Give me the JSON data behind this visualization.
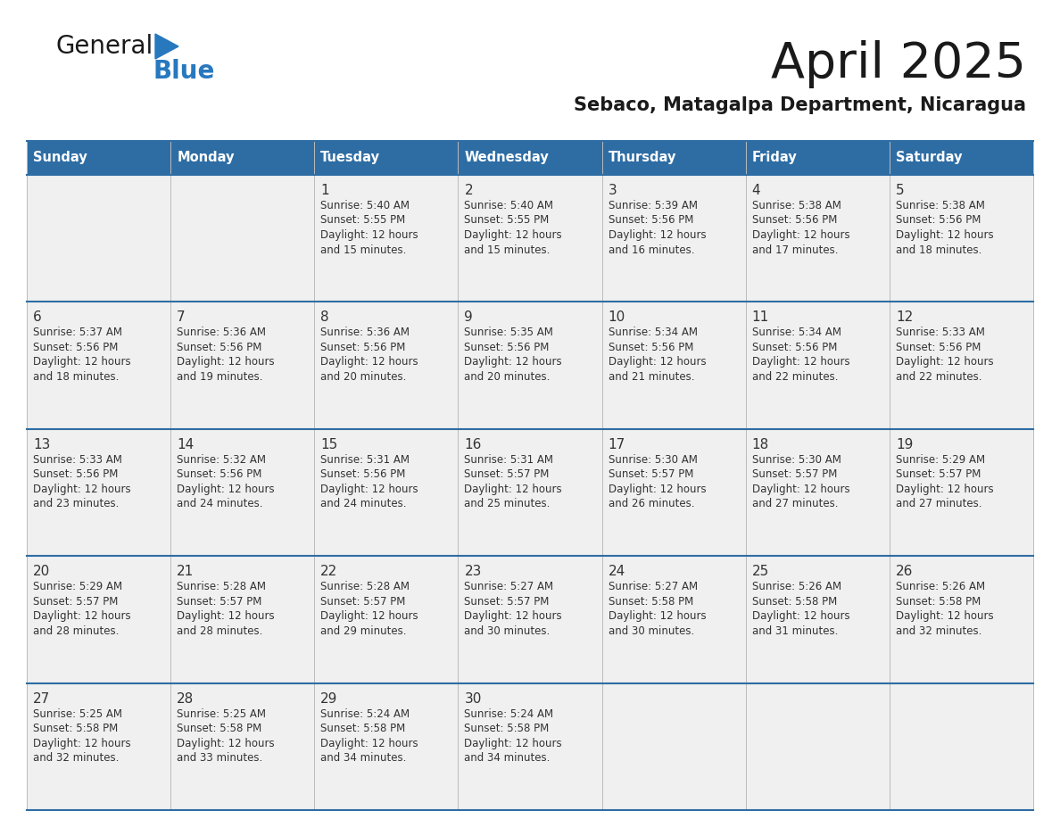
{
  "title": "April 2025",
  "subtitle": "Sebaco, Matagalpa Department, Nicaragua",
  "days_of_week": [
    "Sunday",
    "Monday",
    "Tuesday",
    "Wednesday",
    "Thursday",
    "Friday",
    "Saturday"
  ],
  "header_bg": "#2E6DA4",
  "header_text": "#FFFFFF",
  "cell_bg": "#F0F0F0",
  "cell_text": "#333333",
  "day_num_color": "#333333",
  "border_color": "#2E6DA4",
  "row_line_color": "#2E6DA4",
  "col_line_color": "#BBBBBB",
  "title_color": "#1a1a1a",
  "subtitle_color": "#1a1a1a",
  "logo_general_color": "#1a1a1a",
  "logo_blue_color": "#2878BE",
  "calendar_data": [
    [
      {
        "day": 0,
        "sunrise": "",
        "sunset": "",
        "daylight": ""
      },
      {
        "day": 0,
        "sunrise": "",
        "sunset": "",
        "daylight": ""
      },
      {
        "day": 1,
        "sunrise": "5:40 AM",
        "sunset": "5:55 PM",
        "daylight": "12 hours\nand 15 minutes."
      },
      {
        "day": 2,
        "sunrise": "5:40 AM",
        "sunset": "5:55 PM",
        "daylight": "12 hours\nand 15 minutes."
      },
      {
        "day": 3,
        "sunrise": "5:39 AM",
        "sunset": "5:56 PM",
        "daylight": "12 hours\nand 16 minutes."
      },
      {
        "day": 4,
        "sunrise": "5:38 AM",
        "sunset": "5:56 PM",
        "daylight": "12 hours\nand 17 minutes."
      },
      {
        "day": 5,
        "sunrise": "5:38 AM",
        "sunset": "5:56 PM",
        "daylight": "12 hours\nand 18 minutes."
      }
    ],
    [
      {
        "day": 6,
        "sunrise": "5:37 AM",
        "sunset": "5:56 PM",
        "daylight": "12 hours\nand 18 minutes."
      },
      {
        "day": 7,
        "sunrise": "5:36 AM",
        "sunset": "5:56 PM",
        "daylight": "12 hours\nand 19 minutes."
      },
      {
        "day": 8,
        "sunrise": "5:36 AM",
        "sunset": "5:56 PM",
        "daylight": "12 hours\nand 20 minutes."
      },
      {
        "day": 9,
        "sunrise": "5:35 AM",
        "sunset": "5:56 PM",
        "daylight": "12 hours\nand 20 minutes."
      },
      {
        "day": 10,
        "sunrise": "5:34 AM",
        "sunset": "5:56 PM",
        "daylight": "12 hours\nand 21 minutes."
      },
      {
        "day": 11,
        "sunrise": "5:34 AM",
        "sunset": "5:56 PM",
        "daylight": "12 hours\nand 22 minutes."
      },
      {
        "day": 12,
        "sunrise": "5:33 AM",
        "sunset": "5:56 PM",
        "daylight": "12 hours\nand 22 minutes."
      }
    ],
    [
      {
        "day": 13,
        "sunrise": "5:33 AM",
        "sunset": "5:56 PM",
        "daylight": "12 hours\nand 23 minutes."
      },
      {
        "day": 14,
        "sunrise": "5:32 AM",
        "sunset": "5:56 PM",
        "daylight": "12 hours\nand 24 minutes."
      },
      {
        "day": 15,
        "sunrise": "5:31 AM",
        "sunset": "5:56 PM",
        "daylight": "12 hours\nand 24 minutes."
      },
      {
        "day": 16,
        "sunrise": "5:31 AM",
        "sunset": "5:57 PM",
        "daylight": "12 hours\nand 25 minutes."
      },
      {
        "day": 17,
        "sunrise": "5:30 AM",
        "sunset": "5:57 PM",
        "daylight": "12 hours\nand 26 minutes."
      },
      {
        "day": 18,
        "sunrise": "5:30 AM",
        "sunset": "5:57 PM",
        "daylight": "12 hours\nand 27 minutes."
      },
      {
        "day": 19,
        "sunrise": "5:29 AM",
        "sunset": "5:57 PM",
        "daylight": "12 hours\nand 27 minutes."
      }
    ],
    [
      {
        "day": 20,
        "sunrise": "5:29 AM",
        "sunset": "5:57 PM",
        "daylight": "12 hours\nand 28 minutes."
      },
      {
        "day": 21,
        "sunrise": "5:28 AM",
        "sunset": "5:57 PM",
        "daylight": "12 hours\nand 28 minutes."
      },
      {
        "day": 22,
        "sunrise": "5:28 AM",
        "sunset": "5:57 PM",
        "daylight": "12 hours\nand 29 minutes."
      },
      {
        "day": 23,
        "sunrise": "5:27 AM",
        "sunset": "5:57 PM",
        "daylight": "12 hours\nand 30 minutes."
      },
      {
        "day": 24,
        "sunrise": "5:27 AM",
        "sunset": "5:58 PM",
        "daylight": "12 hours\nand 30 minutes."
      },
      {
        "day": 25,
        "sunrise": "5:26 AM",
        "sunset": "5:58 PM",
        "daylight": "12 hours\nand 31 minutes."
      },
      {
        "day": 26,
        "sunrise": "5:26 AM",
        "sunset": "5:58 PM",
        "daylight": "12 hours\nand 32 minutes."
      }
    ],
    [
      {
        "day": 27,
        "sunrise": "5:25 AM",
        "sunset": "5:58 PM",
        "daylight": "12 hours\nand 32 minutes."
      },
      {
        "day": 28,
        "sunrise": "5:25 AM",
        "sunset": "5:58 PM",
        "daylight": "12 hours\nand 33 minutes."
      },
      {
        "day": 29,
        "sunrise": "5:24 AM",
        "sunset": "5:58 PM",
        "daylight": "12 hours\nand 34 minutes."
      },
      {
        "day": 30,
        "sunrise": "5:24 AM",
        "sunset": "5:58 PM",
        "daylight": "12 hours\nand 34 minutes."
      },
      {
        "day": 0,
        "sunrise": "",
        "sunset": "",
        "daylight": ""
      },
      {
        "day": 0,
        "sunrise": "",
        "sunset": "",
        "daylight": ""
      },
      {
        "day": 0,
        "sunrise": "",
        "sunset": "",
        "daylight": ""
      }
    ]
  ]
}
